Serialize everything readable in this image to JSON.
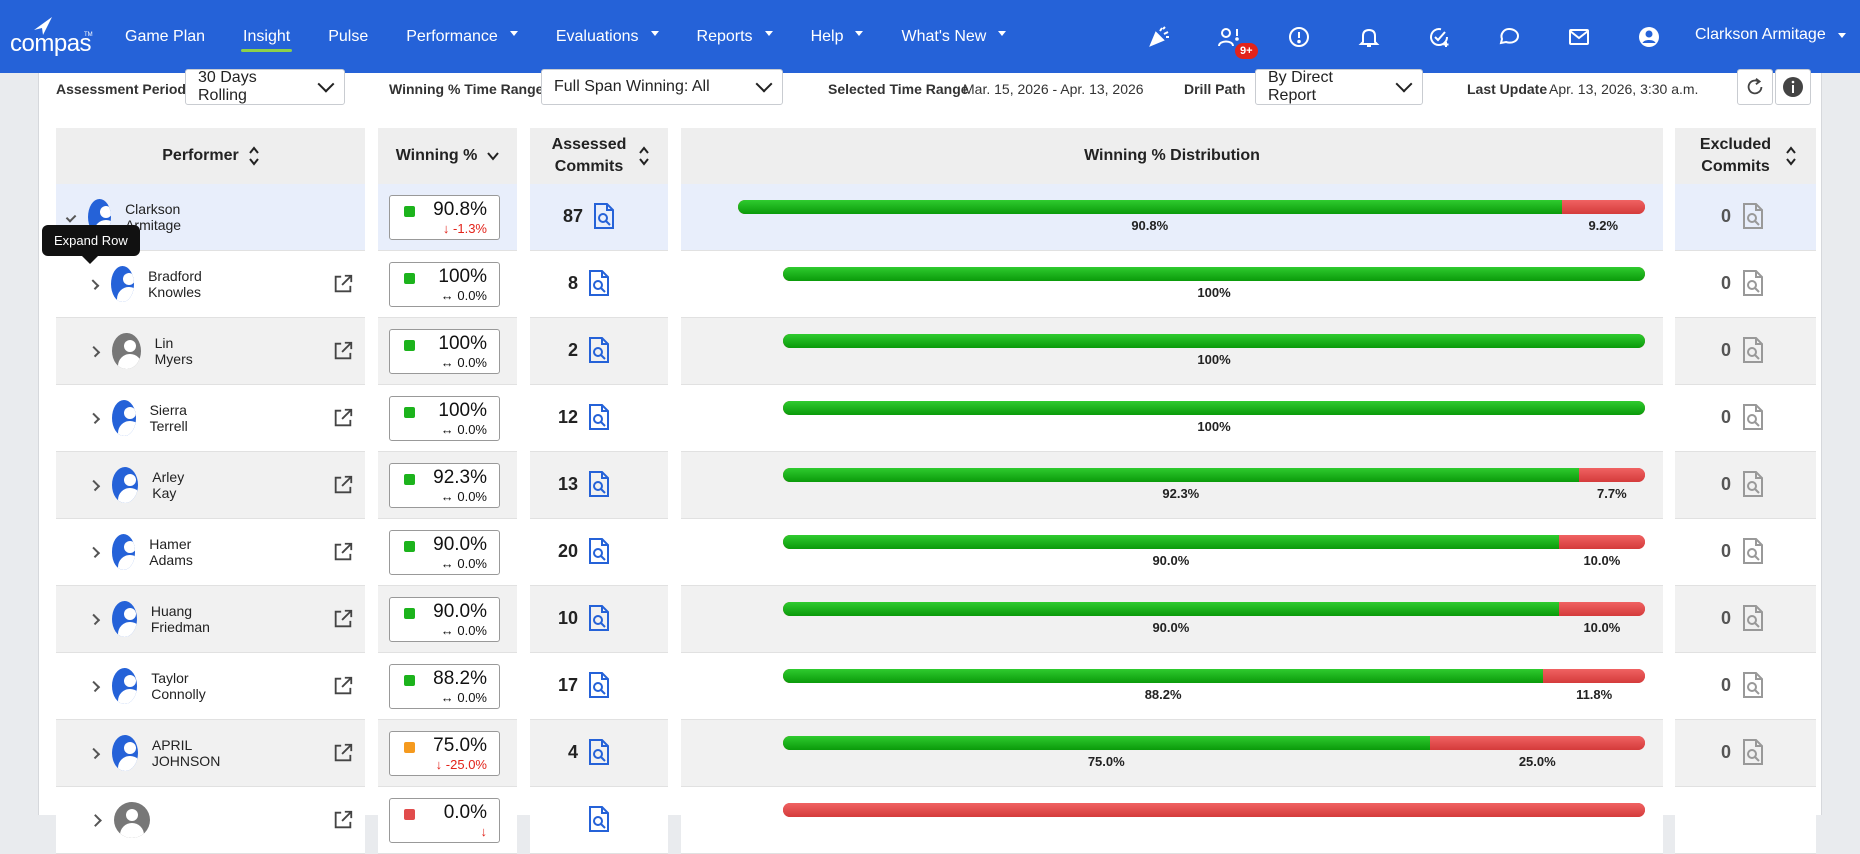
{
  "app": {
    "logo": "compas",
    "logo_tm": "TM"
  },
  "nav": {
    "items": [
      {
        "label": "Game Plan",
        "caret": false,
        "active": false
      },
      {
        "label": "Insight",
        "caret": false,
        "active": true
      },
      {
        "label": "Pulse",
        "caret": false,
        "active": false
      },
      {
        "label": "Performance",
        "caret": true,
        "active": false
      },
      {
        "label": "Evaluations",
        "caret": true,
        "active": false
      },
      {
        "label": "Reports",
        "caret": true,
        "active": false
      },
      {
        "label": "Help",
        "caret": true,
        "active": false
      },
      {
        "label": "What's New",
        "caret": true,
        "active": false
      }
    ],
    "icons": [
      "party-popper-icon",
      "user-alert-icon",
      "alert-circle-icon",
      "bell-icon",
      "checklist-icon",
      "chat-icon",
      "mail-icon",
      "account-icon"
    ],
    "badge": "9+",
    "user": "Clarkson Armitage"
  },
  "filters": {
    "assessment_period_label": "Assessment Period",
    "assessment_period_value": "30 Days Rolling",
    "winning_range_label": "Winning % Time Range",
    "winning_range_value": "Full Span Winning: All",
    "selected_range_label": "Selected Time Range",
    "selected_range_value": "Mar. 15, 2026 - Apr. 13, 2026",
    "drill_path_label": "Drill Path",
    "drill_path_value": "By Direct Report",
    "last_update_label": "Last Update",
    "last_update_value": "Apr. 13, 2026, 3:30 a.m."
  },
  "table": {
    "headers": {
      "performer": "Performer",
      "winning": "Winning %",
      "assessed": "Assessed Commits",
      "distribution": "Winning % Distribution",
      "excluded": "Excluded Commits"
    },
    "tooltip": "Expand Row",
    "rows": [
      {
        "name": "Clarkson Armitage",
        "pct": "90.8%",
        "delta": "-1.3%",
        "delta_dir": "down",
        "status": "green",
        "assessed": "87",
        "win": 90.8,
        "win_label": "90.8%",
        "loss_label": "9.2%",
        "excluded": "0",
        "avatar": "blue",
        "level": 0
      },
      {
        "name": "Bradford Knowles",
        "pct": "100%",
        "delta": "0.0%",
        "delta_dir": "flat",
        "status": "green",
        "assessed": "8",
        "win": 100,
        "win_label": "100%",
        "loss_label": "",
        "excluded": "0",
        "avatar": "blue",
        "level": 1
      },
      {
        "name": "Lin Myers",
        "pct": "100%",
        "delta": "0.0%",
        "delta_dir": "flat",
        "status": "green",
        "assessed": "2",
        "win": 100,
        "win_label": "100%",
        "loss_label": "",
        "excluded": "0",
        "avatar": "grey",
        "level": 1
      },
      {
        "name": "Sierra Terrell",
        "pct": "100%",
        "delta": "0.0%",
        "delta_dir": "flat",
        "status": "green",
        "assessed": "12",
        "win": 100,
        "win_label": "100%",
        "loss_label": "",
        "excluded": "0",
        "avatar": "blue",
        "level": 1
      },
      {
        "name": "Arley Kay",
        "pct": "92.3%",
        "delta": "0.0%",
        "delta_dir": "flat",
        "status": "green",
        "assessed": "13",
        "win": 92.3,
        "win_label": "92.3%",
        "loss_label": "7.7%",
        "excluded": "0",
        "avatar": "blue",
        "level": 1
      },
      {
        "name": "Hamer Adams",
        "pct": "90.0%",
        "delta": "0.0%",
        "delta_dir": "flat",
        "status": "green",
        "assessed": "20",
        "win": 90.0,
        "win_label": "90.0%",
        "loss_label": "10.0%",
        "excluded": "0",
        "avatar": "blue",
        "level": 1
      },
      {
        "name": "Huang Friedman",
        "pct": "90.0%",
        "delta": "0.0%",
        "delta_dir": "flat",
        "status": "green",
        "assessed": "10",
        "win": 90.0,
        "win_label": "90.0%",
        "loss_label": "10.0%",
        "excluded": "0",
        "avatar": "blue",
        "level": 1
      },
      {
        "name": "Taylor Connolly",
        "pct": "88.2%",
        "delta": "0.0%",
        "delta_dir": "flat",
        "status": "green",
        "assessed": "17",
        "win": 88.2,
        "win_label": "88.2%",
        "loss_label": "11.8%",
        "excluded": "0",
        "avatar": "blue",
        "level": 1
      },
      {
        "name": "APRIL JOHNSON",
        "pct": "75.0%",
        "delta": "-25.0%",
        "delta_dir": "down",
        "status": "orange",
        "assessed": "4",
        "win": 75.0,
        "win_label": "75.0%",
        "loss_label": "25.0%",
        "excluded": "0",
        "avatar": "blue",
        "level": 1
      },
      {
        "name": "",
        "pct": "0.0%",
        "delta": "",
        "delta_dir": "down",
        "status": "red",
        "assessed": "",
        "win": 0,
        "win_label": "",
        "loss_label": "",
        "excluded": "",
        "avatar": "grey",
        "level": 1
      }
    ]
  },
  "colors": {
    "brand": "#2562d8",
    "win": "#1cb31c",
    "loss": "#e14c4c",
    "active_underline": "#8dd04a"
  }
}
